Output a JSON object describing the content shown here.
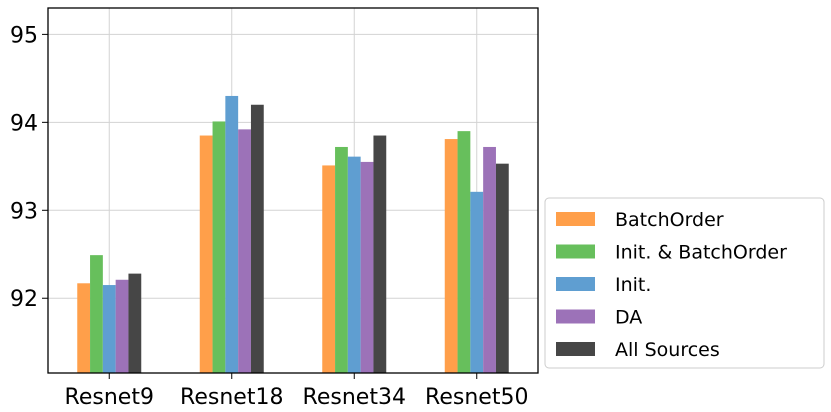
{
  "chart_data": {
    "type": "bar",
    "categories": [
      "Resnet9",
      "Resnet18",
      "Resnet34",
      "Resnet50"
    ],
    "series": [
      {
        "name": "BatchOrder",
        "color": "#ff9f4a",
        "values": [
          92.17,
          93.85,
          93.51,
          93.81
        ]
      },
      {
        "name": "Init. & BatchOrder",
        "color": "#67bf5c",
        "values": [
          92.49,
          94.01,
          93.72,
          93.9
        ]
      },
      {
        "name": "Init.",
        "color": "#5f9ed1",
        "values": [
          92.15,
          94.3,
          93.61,
          93.21
        ]
      },
      {
        "name": "DA",
        "color": "#9c72b8",
        "values": [
          92.21,
          93.92,
          93.55,
          93.72
        ]
      },
      {
        "name": "All Sources",
        "color": "#464646",
        "values": [
          92.28,
          94.2,
          93.85,
          93.53
        ]
      }
    ],
    "yticks": [
      "92",
      "93",
      "94",
      "95"
    ],
    "ylim": [
      91.15,
      95.3
    ],
    "grid": true,
    "legend_position": "lower-right-outside",
    "title": "",
    "xlabel": "",
    "ylabel": ""
  }
}
